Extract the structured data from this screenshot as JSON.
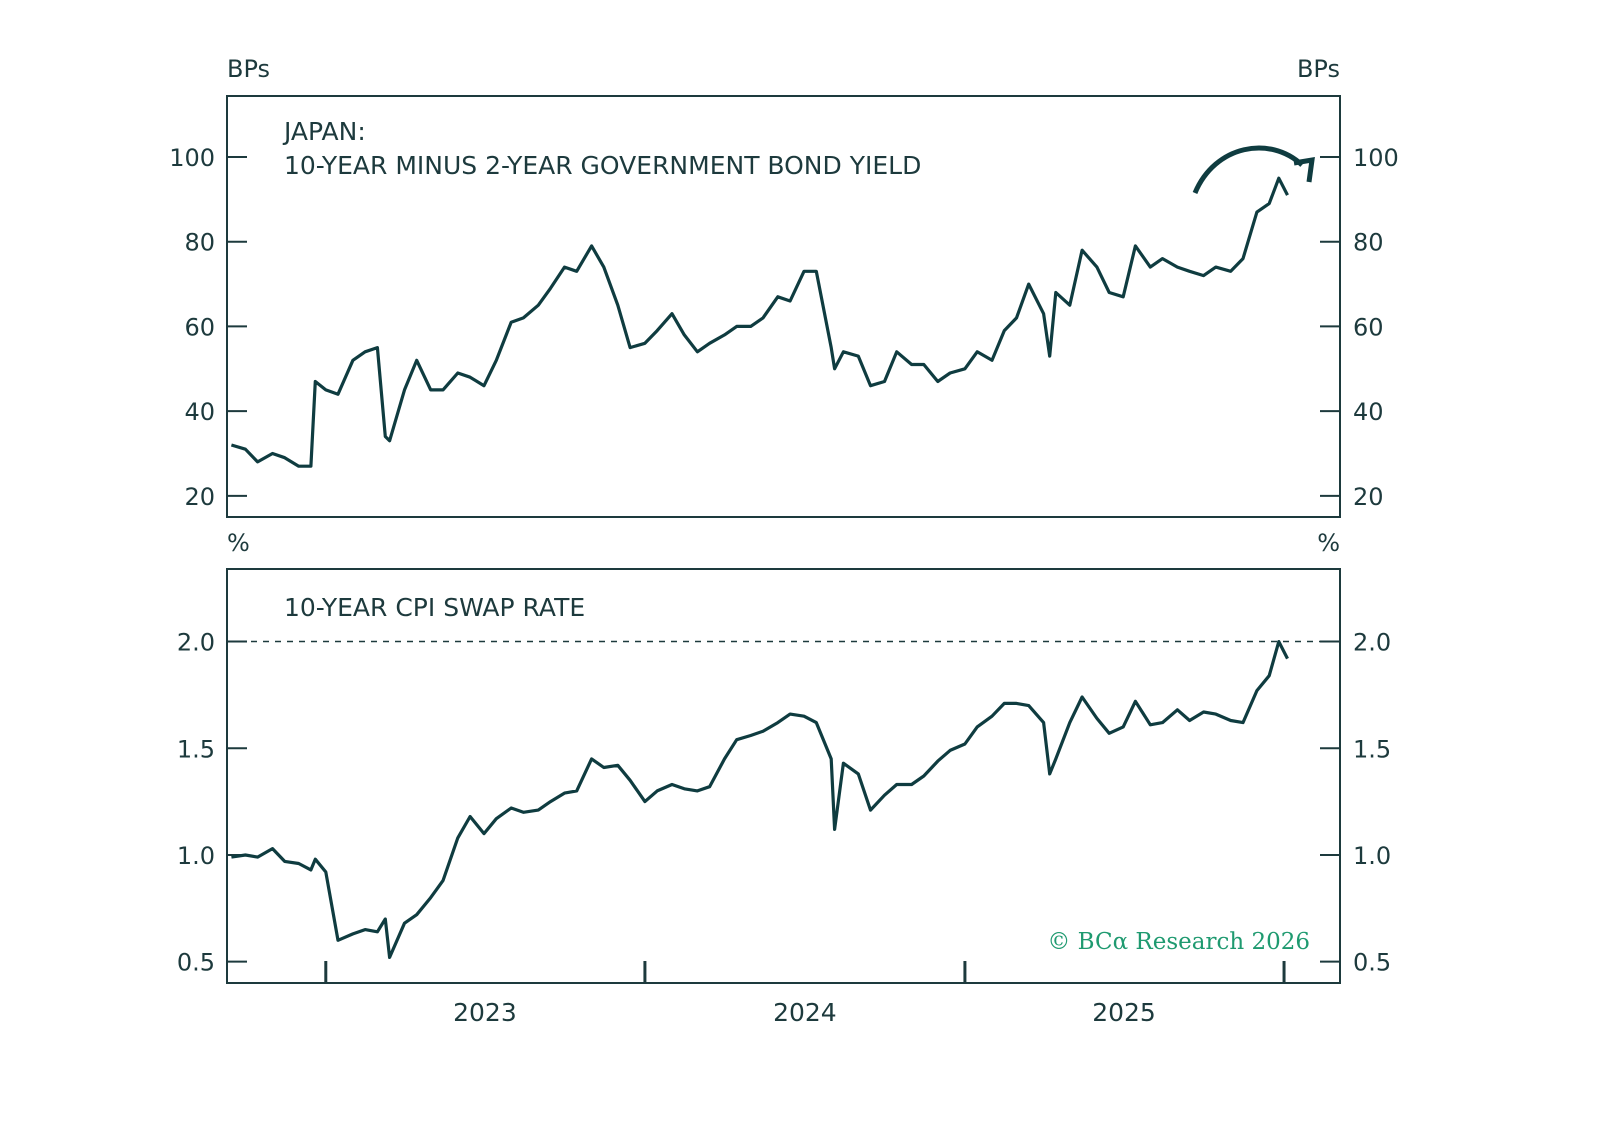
{
  "colors": {
    "line": "#0f3c40",
    "axis": "#1d3a3d",
    "copyright": "#1f9a70"
  },
  "copyright": "© BCα Research 2026",
  "x_axis": {
    "ticks": [
      "2023-01-01",
      "2024-01-01",
      "2025-01-01",
      "2026-01-01"
    ],
    "labels": [
      {
        "text": "2023",
        "at": "2023-07-02"
      },
      {
        "text": "2024",
        "at": "2024-07-02"
      },
      {
        "text": "2025",
        "at": "2025-07-02"
      }
    ]
  },
  "chart_data": [
    {
      "type": "line",
      "title_line1": "JAPAN:",
      "title_line2": "10-YEAR MINUS 2-YEAR GOVERNMENT BOND YIELD",
      "unit_left": "BPs",
      "unit_right": "BPs",
      "xlim": [
        "2022-09-10",
        "2026-03-06"
      ],
      "ylim": [
        15,
        114.4
      ],
      "yticks": [
        20,
        40,
        60,
        80,
        100
      ],
      "ytick_labels": [
        "20",
        "40",
        "60",
        "80",
        "100"
      ],
      "annotation": "curved-arrow-down",
      "grid": false,
      "series": [
        {
          "points": [
            [
              "2022-09-15",
              32
            ],
            [
              "2022-10-01",
              31
            ],
            [
              "2022-10-15",
              28
            ],
            [
              "2022-11-01",
              30
            ],
            [
              "2022-11-15",
              29
            ],
            [
              "2022-12-01",
              27
            ],
            [
              "2022-12-15",
              27
            ],
            [
              "2022-12-20",
              47
            ],
            [
              "2023-01-01",
              45
            ],
            [
              "2023-01-15",
              44
            ],
            [
              "2023-02-01",
              52
            ],
            [
              "2023-02-15",
              54
            ],
            [
              "2023-03-01",
              55
            ],
            [
              "2023-03-10",
              34
            ],
            [
              "2023-03-15",
              33
            ],
            [
              "2023-04-01",
              45
            ],
            [
              "2023-04-15",
              52
            ],
            [
              "2023-05-01",
              45
            ],
            [
              "2023-05-15",
              45
            ],
            [
              "2023-06-01",
              49
            ],
            [
              "2023-06-15",
              48
            ],
            [
              "2023-07-01",
              46
            ],
            [
              "2023-07-15",
              52
            ],
            [
              "2023-08-01",
              61
            ],
            [
              "2023-08-15",
              62
            ],
            [
              "2023-09-01",
              65
            ],
            [
              "2023-09-15",
              69
            ],
            [
              "2023-10-01",
              74
            ],
            [
              "2023-10-15",
              73
            ],
            [
              "2023-11-01",
              79
            ],
            [
              "2023-11-15",
              74
            ],
            [
              "2023-12-01",
              65
            ],
            [
              "2023-12-15",
              55
            ],
            [
              "2024-01-01",
              56
            ],
            [
              "2024-01-15",
              59
            ],
            [
              "2024-02-01",
              63
            ],
            [
              "2024-02-15",
              58
            ],
            [
              "2024-03-01",
              54
            ],
            [
              "2024-03-15",
              56
            ],
            [
              "2024-04-01",
              58
            ],
            [
              "2024-04-15",
              60
            ],
            [
              "2024-05-01",
              60
            ],
            [
              "2024-05-15",
              62
            ],
            [
              "2024-06-01",
              67
            ],
            [
              "2024-06-15",
              66
            ],
            [
              "2024-07-01",
              73
            ],
            [
              "2024-07-15",
              73
            ],
            [
              "2024-08-01",
              55
            ],
            [
              "2024-08-05",
              50
            ],
            [
              "2024-08-15",
              54
            ],
            [
              "2024-09-01",
              53
            ],
            [
              "2024-09-15",
              46
            ],
            [
              "2024-10-01",
              47
            ],
            [
              "2024-10-15",
              54
            ],
            [
              "2024-11-01",
              51
            ],
            [
              "2024-11-15",
              51
            ],
            [
              "2024-12-01",
              47
            ],
            [
              "2024-12-15",
              49
            ],
            [
              "2025-01-01",
              50
            ],
            [
              "2025-01-15",
              54
            ],
            [
              "2025-02-01",
              52
            ],
            [
              "2025-02-15",
              59
            ],
            [
              "2025-03-01",
              62
            ],
            [
              "2025-03-15",
              70
            ],
            [
              "2025-04-01",
              63
            ],
            [
              "2025-04-08",
              53
            ],
            [
              "2025-04-15",
              68
            ],
            [
              "2025-05-01",
              65
            ],
            [
              "2025-05-15",
              78
            ],
            [
              "2025-06-01",
              74
            ],
            [
              "2025-06-15",
              68
            ],
            [
              "2025-07-01",
              67
            ],
            [
              "2025-07-15",
              79
            ],
            [
              "2025-08-01",
              74
            ],
            [
              "2025-08-15",
              76
            ],
            [
              "2025-09-01",
              74
            ],
            [
              "2025-09-15",
              73
            ],
            [
              "2025-10-01",
              72
            ],
            [
              "2025-10-15",
              74
            ],
            [
              "2025-11-01",
              73
            ],
            [
              "2025-11-15",
              76
            ],
            [
              "2025-12-01",
              87
            ],
            [
              "2025-12-15",
              89
            ],
            [
              "2025-12-26",
              95
            ],
            [
              "2026-01-05",
              91
            ]
          ]
        }
      ]
    },
    {
      "type": "line",
      "title_line1": "10-YEAR CPI SWAP RATE",
      "unit_left": "%",
      "unit_right": "%",
      "xlim": [
        "2022-09-10",
        "2026-03-06"
      ],
      "ylim": [
        0.4,
        2.34
      ],
      "yticks": [
        0.5,
        1.0,
        1.5,
        2.0
      ],
      "ytick_labels": [
        "0.5",
        "1.0",
        "1.5",
        "2.0"
      ],
      "reference_line": 2.0,
      "grid": false,
      "series": [
        {
          "points": [
            [
              "2022-09-15",
              0.99
            ],
            [
              "2022-10-01",
              1.0
            ],
            [
              "2022-10-15",
              0.99
            ],
            [
              "2022-11-01",
              1.03
            ],
            [
              "2022-11-15",
              0.97
            ],
            [
              "2022-12-01",
              0.96
            ],
            [
              "2022-12-15",
              0.93
            ],
            [
              "2022-12-20",
              0.98
            ],
            [
              "2023-01-01",
              0.92
            ],
            [
              "2023-01-15",
              0.6
            ],
            [
              "2023-02-01",
              0.63
            ],
            [
              "2023-02-15",
              0.65
            ],
            [
              "2023-03-01",
              0.64
            ],
            [
              "2023-03-10",
              0.7
            ],
            [
              "2023-03-15",
              0.52
            ],
            [
              "2023-04-01",
              0.68
            ],
            [
              "2023-04-15",
              0.72
            ],
            [
              "2023-05-01",
              0.8
            ],
            [
              "2023-05-15",
              0.88
            ],
            [
              "2023-06-01",
              1.08
            ],
            [
              "2023-06-15",
              1.18
            ],
            [
              "2023-07-01",
              1.1
            ],
            [
              "2023-07-15",
              1.17
            ],
            [
              "2023-08-01",
              1.22
            ],
            [
              "2023-08-15",
              1.2
            ],
            [
              "2023-09-01",
              1.21
            ],
            [
              "2023-09-15",
              1.25
            ],
            [
              "2023-10-01",
              1.29
            ],
            [
              "2023-10-15",
              1.3
            ],
            [
              "2023-11-01",
              1.45
            ],
            [
              "2023-11-15",
              1.41
            ],
            [
              "2023-12-01",
              1.42
            ],
            [
              "2023-12-15",
              1.35
            ],
            [
              "2024-01-01",
              1.25
            ],
            [
              "2024-01-15",
              1.3
            ],
            [
              "2024-02-01",
              1.33
            ],
            [
              "2024-02-15",
              1.31
            ],
            [
              "2024-03-01",
              1.3
            ],
            [
              "2024-03-15",
              1.32
            ],
            [
              "2024-04-01",
              1.45
            ],
            [
              "2024-04-15",
              1.54
            ],
            [
              "2024-05-01",
              1.56
            ],
            [
              "2024-05-15",
              1.58
            ],
            [
              "2024-06-01",
              1.62
            ],
            [
              "2024-06-15",
              1.66
            ],
            [
              "2024-07-01",
              1.65
            ],
            [
              "2024-07-15",
              1.62
            ],
            [
              "2024-08-01",
              1.45
            ],
            [
              "2024-08-05",
              1.12
            ],
            [
              "2024-08-15",
              1.43
            ],
            [
              "2024-09-01",
              1.38
            ],
            [
              "2024-09-15",
              1.21
            ],
            [
              "2024-10-01",
              1.28
            ],
            [
              "2024-10-15",
              1.33
            ],
            [
              "2024-11-01",
              1.33
            ],
            [
              "2024-11-15",
              1.37
            ],
            [
              "2024-12-01",
              1.44
            ],
            [
              "2024-12-15",
              1.49
            ],
            [
              "2025-01-01",
              1.52
            ],
            [
              "2025-01-15",
              1.6
            ],
            [
              "2025-02-01",
              1.65
            ],
            [
              "2025-02-15",
              1.71
            ],
            [
              "2025-03-01",
              1.71
            ],
            [
              "2025-03-15",
              1.7
            ],
            [
              "2025-04-01",
              1.62
            ],
            [
              "2025-04-08",
              1.38
            ],
            [
              "2025-04-15",
              1.45
            ],
            [
              "2025-05-01",
              1.62
            ],
            [
              "2025-05-15",
              1.74
            ],
            [
              "2025-06-01",
              1.64
            ],
            [
              "2025-06-15",
              1.57
            ],
            [
              "2025-07-01",
              1.6
            ],
            [
              "2025-07-15",
              1.72
            ],
            [
              "2025-08-01",
              1.61
            ],
            [
              "2025-08-15",
              1.62
            ],
            [
              "2025-09-01",
              1.68
            ],
            [
              "2025-09-15",
              1.63
            ],
            [
              "2025-10-01",
              1.67
            ],
            [
              "2025-10-15",
              1.66
            ],
            [
              "2025-11-01",
              1.63
            ],
            [
              "2025-11-15",
              1.62
            ],
            [
              "2025-12-01",
              1.77
            ],
            [
              "2025-12-15",
              1.84
            ],
            [
              "2025-12-26",
              2.0
            ],
            [
              "2026-01-05",
              1.92
            ]
          ]
        }
      ]
    }
  ]
}
